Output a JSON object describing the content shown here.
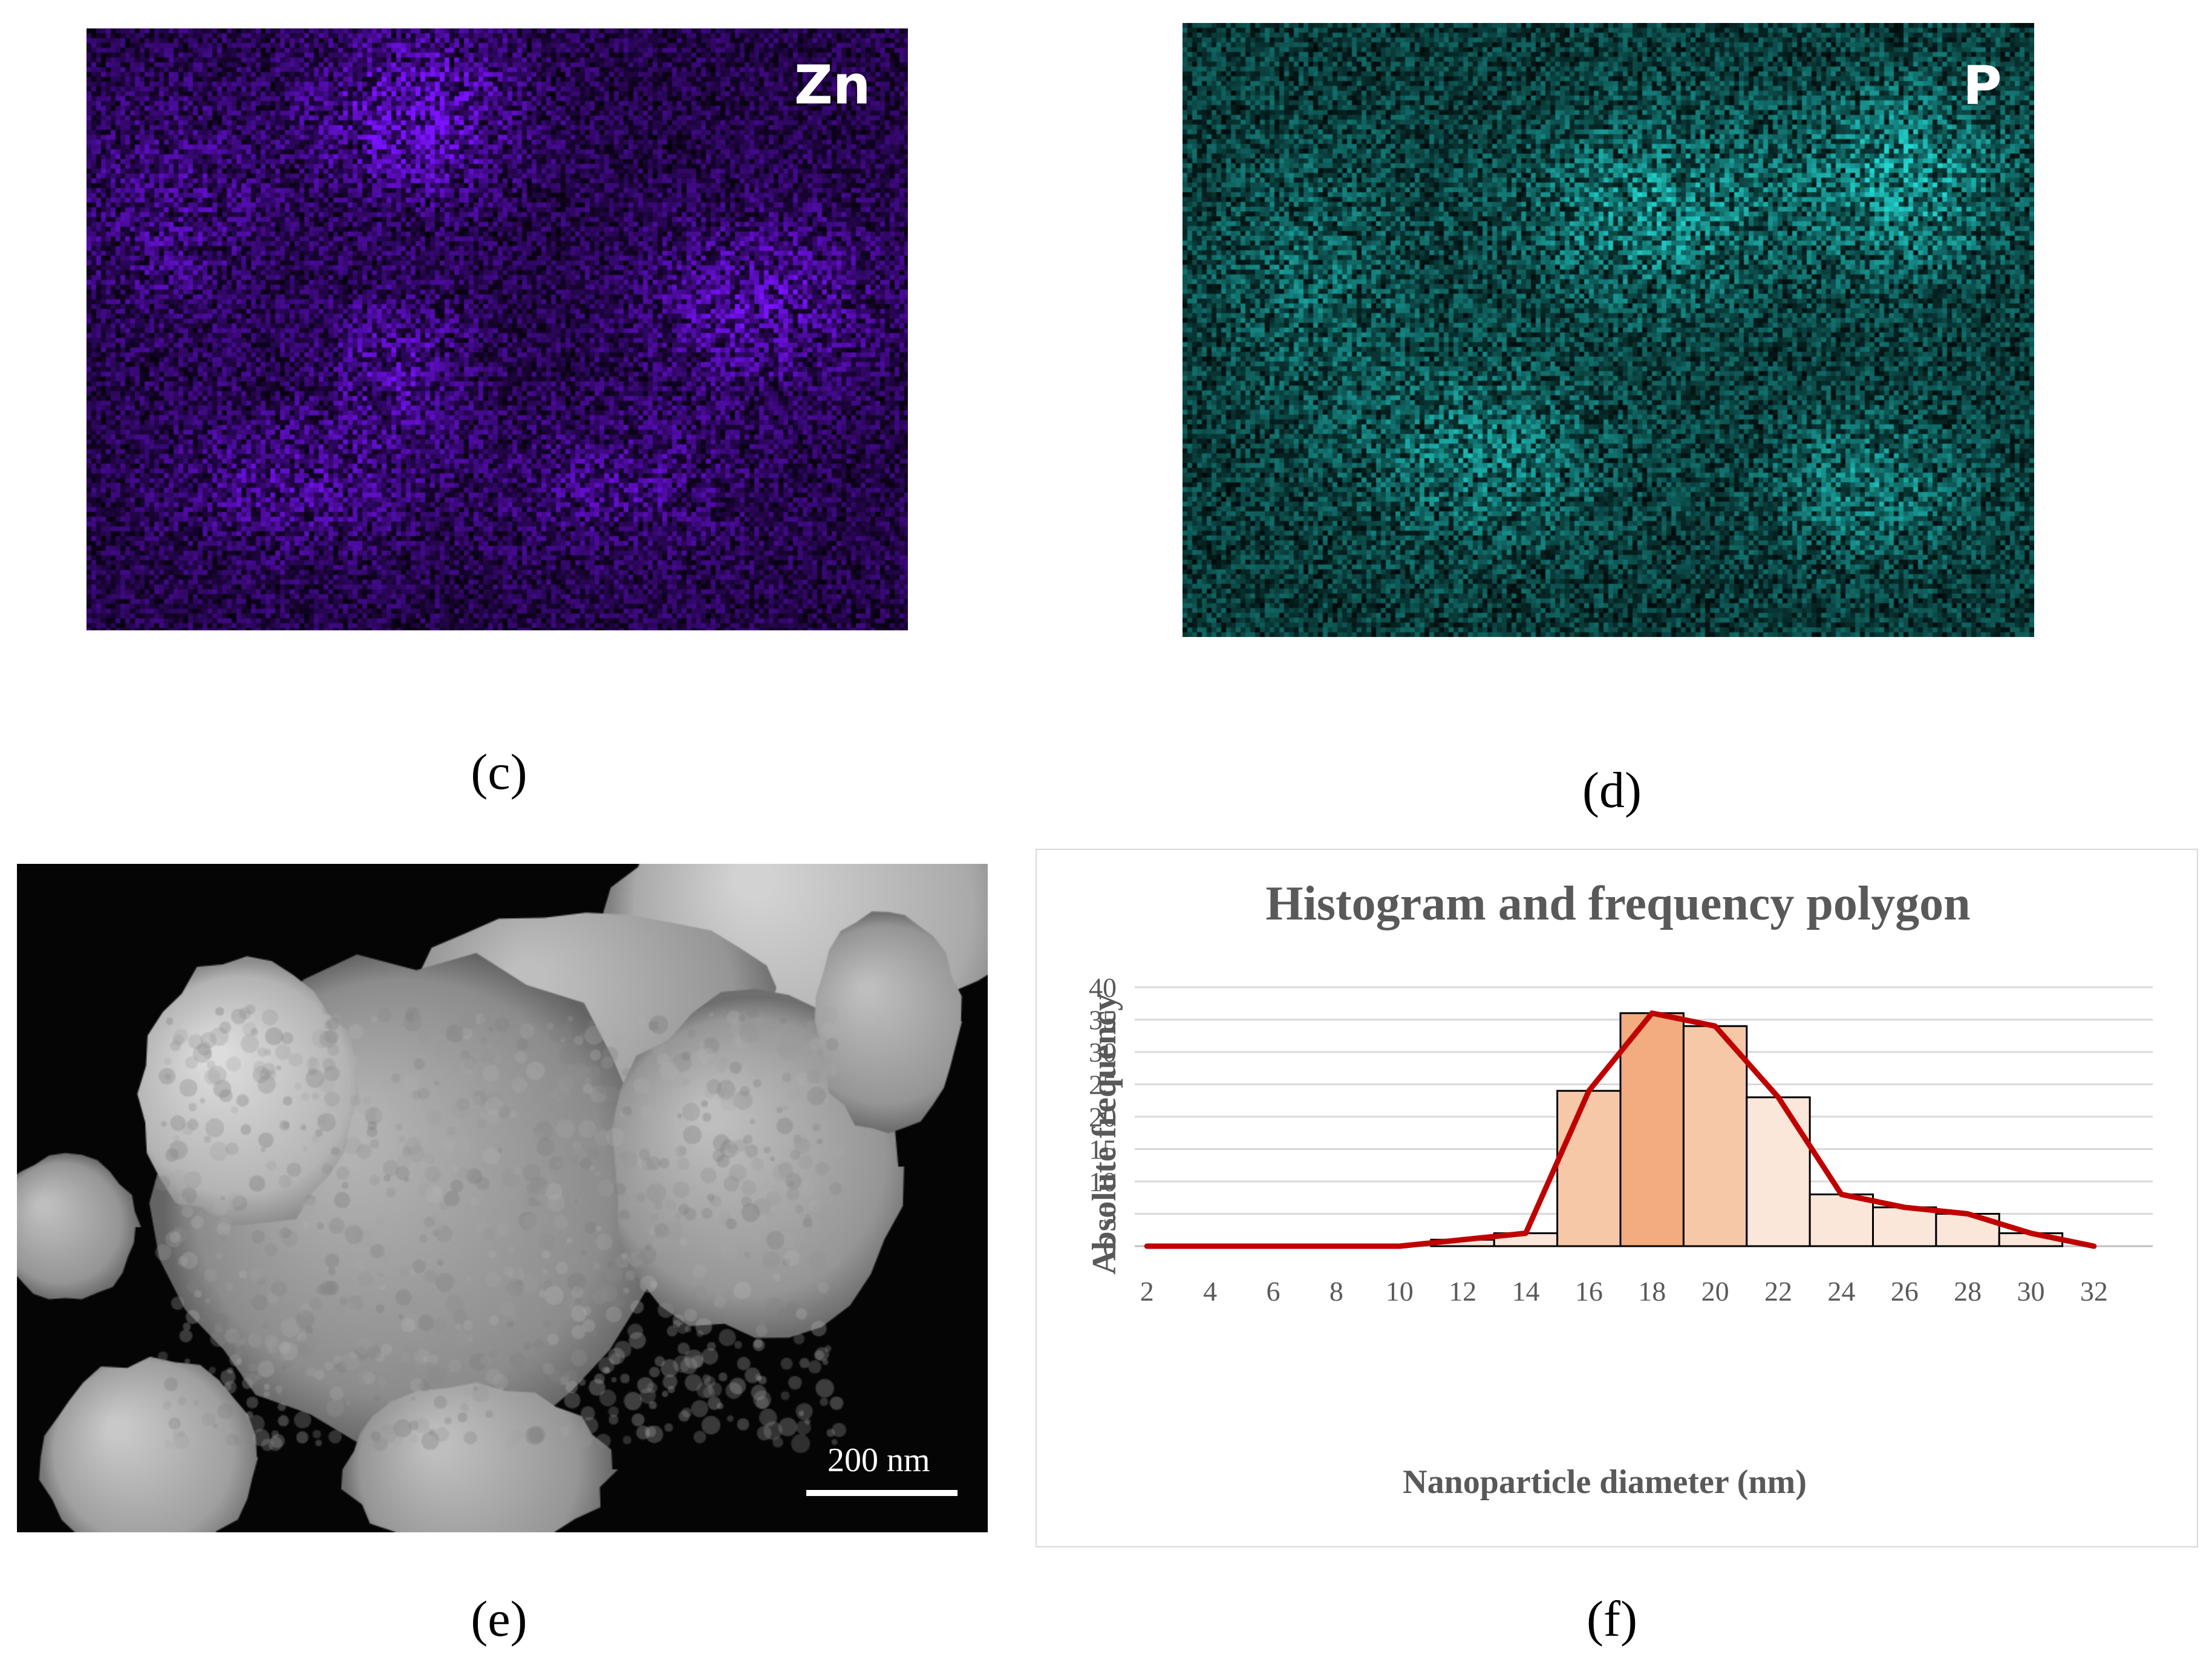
{
  "panels": {
    "c": {
      "caption": "(c)",
      "element": "Zn",
      "map_color": "#7a12ff"
    },
    "d": {
      "caption": "(d)",
      "element": "P",
      "map_color": "#22d6d0"
    },
    "e": {
      "caption": "(e)",
      "scale_bar": "200 nm"
    },
    "f": {
      "caption": "(f)"
    }
  },
  "chart_data": {
    "type": "bar",
    "title": "Histogram and frequency polygon",
    "xlabel": "Nanoparticle diameter (nm)",
    "ylabel": "Absolute frequency",
    "ylim": [
      0,
      40
    ],
    "yticks": [
      "0",
      "5",
      "10",
      "15",
      "20",
      "25",
      "30",
      "35",
      "40"
    ],
    "xticks": [
      "2",
      "4",
      "6",
      "8",
      "10",
      "12",
      "14",
      "16",
      "18",
      "20",
      "22",
      "24",
      "26",
      "28",
      "30",
      "32"
    ],
    "grid": true,
    "histogram": {
      "bins": [
        [
          11,
          13
        ],
        [
          13,
          15
        ],
        [
          15,
          17
        ],
        [
          17,
          19
        ],
        [
          19,
          21
        ],
        [
          21,
          23
        ],
        [
          23,
          25
        ],
        [
          25,
          27
        ],
        [
          27,
          29
        ],
        [
          29,
          31
        ]
      ],
      "values": [
        1,
        2,
        24,
        36,
        34,
        23,
        8,
        6,
        5,
        2
      ],
      "colors": [
        "#fbe6da",
        "#fbe6da",
        "#f7c8a8",
        "#f2ac7f",
        "#f7c8a8",
        "#fbe6da",
        "#fbe6da",
        "#fbe6da",
        "#fbe6da",
        "#fbe6da"
      ]
    },
    "polygon": {
      "x": [
        2,
        4,
        6,
        8,
        10,
        12,
        14,
        16,
        18,
        20,
        22,
        24,
        26,
        28,
        30,
        32
      ],
      "y": [
        0,
        0,
        0,
        0,
        0,
        1,
        2,
        24,
        36,
        34,
        23,
        8,
        6,
        5,
        2,
        0
      ],
      "color": "#c00000"
    }
  }
}
